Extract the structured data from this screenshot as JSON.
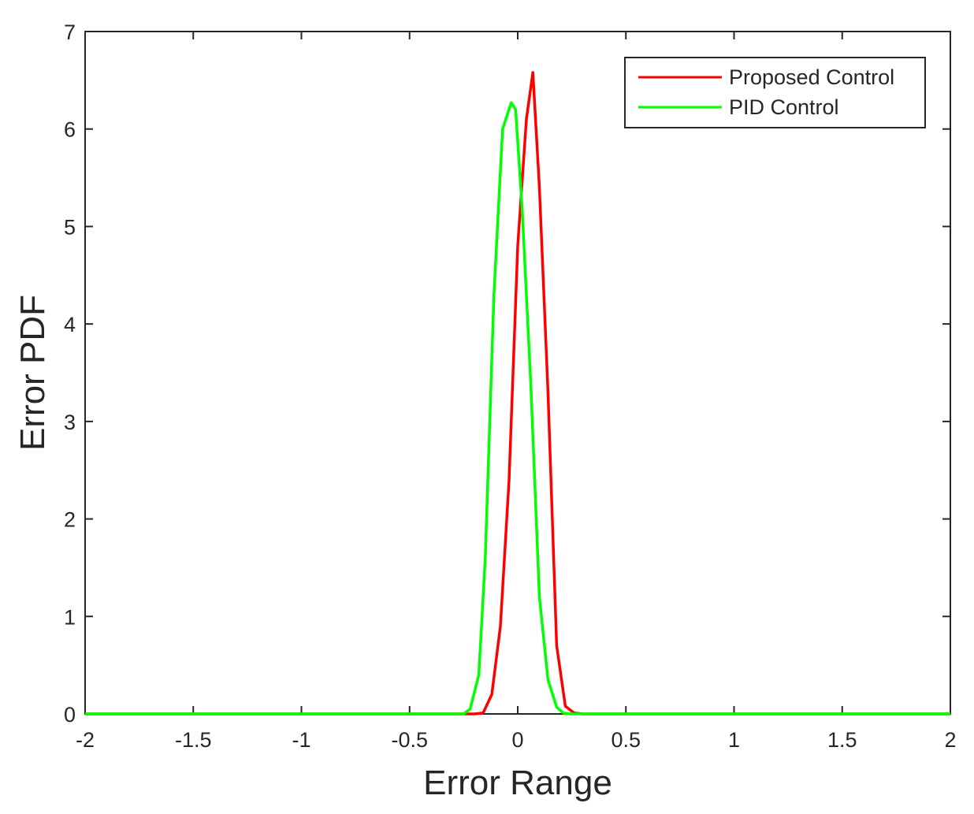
{
  "chart_data": {
    "type": "line",
    "title": "",
    "xlabel": "Error Range",
    "ylabel": "Error PDF",
    "xlim": [
      -2,
      2
    ],
    "ylim": [
      0,
      7
    ],
    "xticks": [
      -2,
      -1.5,
      -1,
      -0.5,
      0,
      0.5,
      1,
      1.5,
      2
    ],
    "xtick_labels": [
      "-2",
      "-1.5",
      "-1",
      "-0.5",
      "0",
      "0.5",
      "1",
      "1.5",
      "2"
    ],
    "yticks": [
      0,
      1,
      2,
      3,
      4,
      5,
      6,
      7
    ],
    "ytick_labels": [
      "0",
      "1",
      "2",
      "3",
      "4",
      "5",
      "6",
      "7"
    ],
    "grid": false,
    "legend_position": "top-right",
    "series": [
      {
        "name": "Proposed Control",
        "color": "#ff0000",
        "x": [
          -2,
          -0.2,
          -0.16,
          -0.12,
          -0.08,
          -0.04,
          0,
          0.04,
          0.07,
          0.1,
          0.14,
          0.18,
          0.22,
          0.26,
          0.3,
          2
        ],
        "y": [
          0,
          0,
          0.01,
          0.2,
          0.9,
          2.4,
          4.8,
          6.1,
          6.58,
          5.4,
          3.3,
          0.7,
          0.08,
          0.01,
          0,
          0
        ]
      },
      {
        "name": "PID Control",
        "color": "#00ff00",
        "x": [
          -2,
          -0.25,
          -0.22,
          -0.18,
          -0.15,
          -0.11,
          -0.07,
          -0.03,
          -0.01,
          0.02,
          0.06,
          0.1,
          0.14,
          0.18,
          0.21,
          0.24,
          2
        ],
        "y": [
          0,
          0,
          0.05,
          0.4,
          1.6,
          4.3,
          6.0,
          6.27,
          6.2,
          5.2,
          3.4,
          1.2,
          0.35,
          0.07,
          0.01,
          0,
          0
        ]
      }
    ]
  }
}
